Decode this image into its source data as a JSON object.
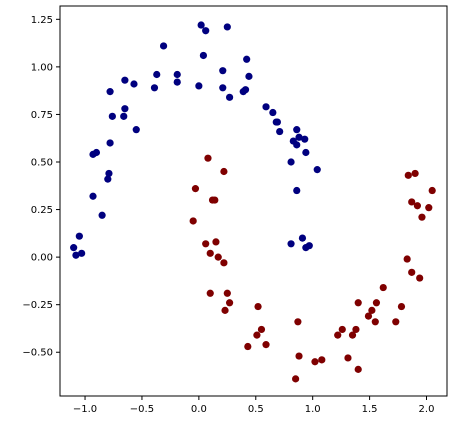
{
  "chart_data": {
    "type": "scatter",
    "title": "",
    "xlabel": "",
    "ylabel": "",
    "xlim": [
      -1.22,
      2.18
    ],
    "ylim": [
      -0.73,
      1.32
    ],
    "xticks": [
      -1.0,
      -0.5,
      0.0,
      0.5,
      1.0,
      1.5,
      2.0
    ],
    "yticks": [
      -0.5,
      -0.25,
      0.0,
      0.25,
      0.5,
      0.75,
      1.0,
      1.25
    ],
    "xtick_labels": [
      "−1.0",
      "−0.5",
      "0.0",
      "0.5",
      "1.0",
      "1.5",
      "2.0"
    ],
    "ytick_labels": [
      "−0.50",
      "−0.25",
      "0.00",
      "0.25",
      "0.50",
      "0.75",
      "1.00",
      "1.25"
    ],
    "grid": false,
    "legend": "none",
    "series": [
      {
        "color": "#00007f",
        "points": [
          [
            -1.1,
            0.05
          ],
          [
            -1.08,
            0.01
          ],
          [
            -1.05,
            0.11
          ],
          [
            -1.03,
            0.02
          ],
          [
            -0.93,
            0.32
          ],
          [
            -0.93,
            0.54
          ],
          [
            -0.9,
            0.55
          ],
          [
            -0.85,
            0.22
          ],
          [
            -0.8,
            0.41
          ],
          [
            -0.79,
            0.44
          ],
          [
            -0.78,
            0.6
          ],
          [
            -0.78,
            0.87
          ],
          [
            -0.76,
            0.74
          ],
          [
            -0.66,
            0.74
          ],
          [
            -0.65,
            0.78
          ],
          [
            -0.65,
            0.93
          ],
          [
            -0.57,
            0.91
          ],
          [
            -0.55,
            0.67
          ],
          [
            -0.39,
            0.89
          ],
          [
            -0.37,
            0.96
          ],
          [
            -0.31,
            1.11
          ],
          [
            -0.19,
            0.92
          ],
          [
            -0.19,
            0.96
          ],
          [
            0.0,
            0.9
          ],
          [
            0.02,
            1.22
          ],
          [
            0.04,
            1.06
          ],
          [
            0.06,
            1.19
          ],
          [
            0.21,
            0.89
          ],
          [
            0.21,
            0.98
          ],
          [
            0.25,
            1.21
          ],
          [
            0.27,
            0.84
          ],
          [
            0.39,
            0.87
          ],
          [
            0.41,
            0.88
          ],
          [
            0.42,
            1.04
          ],
          [
            0.44,
            0.95
          ],
          [
            0.59,
            0.79
          ],
          [
            0.65,
            0.76
          ],
          [
            0.68,
            0.71
          ],
          [
            0.69,
            0.71
          ],
          [
            0.71,
            0.66
          ],
          [
            0.81,
            0.5
          ],
          [
            0.83,
            0.61
          ],
          [
            0.86,
            0.35
          ],
          [
            0.86,
            0.59
          ],
          [
            0.86,
            0.67
          ],
          [
            0.88,
            0.63
          ],
          [
            0.93,
            0.62
          ],
          [
            0.94,
            0.55
          ],
          [
            0.81,
            0.07
          ],
          [
            0.91,
            0.1
          ],
          [
            0.94,
            0.05
          ],
          [
            0.97,
            0.06
          ],
          [
            1.04,
            0.46
          ]
        ]
      },
      {
        "color": "#7f0000",
        "points": [
          [
            -0.05,
            0.19
          ],
          [
            -0.03,
            0.36
          ],
          [
            0.06,
            0.07
          ],
          [
            0.08,
            0.52
          ],
          [
            0.1,
            0.02
          ],
          [
            0.1,
            -0.19
          ],
          [
            0.12,
            0.3
          ],
          [
            0.14,
            0.3
          ],
          [
            0.15,
            0.08
          ],
          [
            0.17,
            0.0
          ],
          [
            0.22,
            0.45
          ],
          [
            0.22,
            -0.03
          ],
          [
            0.23,
            -0.28
          ],
          [
            0.25,
            -0.19
          ],
          [
            0.27,
            -0.24
          ],
          [
            0.43,
            -0.47
          ],
          [
            0.51,
            -0.41
          ],
          [
            0.52,
            -0.26
          ],
          [
            0.55,
            -0.38
          ],
          [
            0.59,
            -0.46
          ],
          [
            0.85,
            -0.64
          ],
          [
            0.88,
            -0.52
          ],
          [
            0.87,
            -0.34
          ],
          [
            1.02,
            -0.55
          ],
          [
            1.08,
            -0.54
          ],
          [
            1.22,
            -0.41
          ],
          [
            1.26,
            -0.38
          ],
          [
            1.31,
            -0.53
          ],
          [
            1.35,
            -0.41
          ],
          [
            1.38,
            -0.38
          ],
          [
            1.4,
            -0.59
          ],
          [
            1.4,
            -0.24
          ],
          [
            1.49,
            -0.31
          ],
          [
            1.52,
            -0.28
          ],
          [
            1.56,
            -0.24
          ],
          [
            1.55,
            -0.34
          ],
          [
            1.62,
            -0.16
          ],
          [
            1.73,
            -0.34
          ],
          [
            1.78,
            -0.26
          ],
          [
            1.83,
            -0.01
          ],
          [
            1.84,
            0.43
          ],
          [
            1.87,
            0.29
          ],
          [
            1.87,
            -0.08
          ],
          [
            1.9,
            0.44
          ],
          [
            1.92,
            0.27
          ],
          [
            1.94,
            -0.11
          ],
          [
            1.96,
            0.21
          ],
          [
            2.02,
            0.26
          ],
          [
            2.05,
            0.35
          ]
        ]
      }
    ]
  }
}
